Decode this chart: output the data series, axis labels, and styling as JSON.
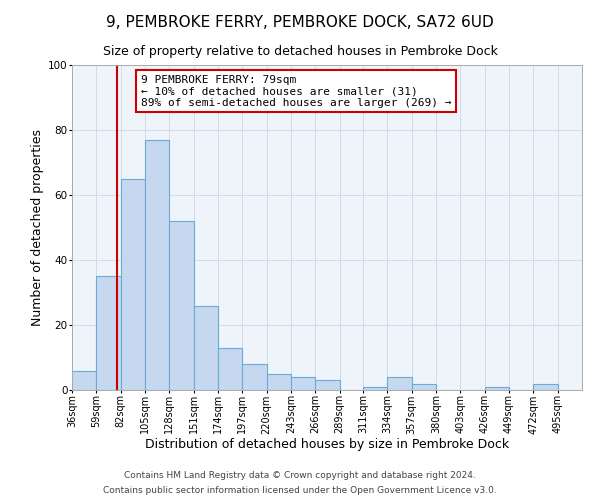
{
  "title": "9, PEMBROKE FERRY, PEMBROKE DOCK, SA72 6UD",
  "subtitle": "Size of property relative to detached houses in Pembroke Dock",
  "xlabel": "Distribution of detached houses by size in Pembroke Dock",
  "ylabel": "Number of detached properties",
  "bar_left_edges": [
    36,
    59,
    82,
    105,
    128,
    151,
    174,
    197,
    220,
    243,
    266,
    289,
    311,
    334,
    357,
    380,
    403,
    426,
    449,
    472
  ],
  "bar_heights": [
    6,
    35,
    65,
    77,
    52,
    26,
    13,
    8,
    5,
    4,
    3,
    0,
    1,
    4,
    2,
    0,
    0,
    1,
    0,
    2
  ],
  "bin_width": 23,
  "bar_color": "#c5d8f0",
  "bar_edge_color": "#6aaad4",
  "bar_linewidth": 0.8,
  "vline_x": 79,
  "vline_color": "#cc0000",
  "vline_linewidth": 1.5,
  "ylim": [
    0,
    100
  ],
  "xlim": [
    36,
    518
  ],
  "tick_labels": [
    "36sqm",
    "59sqm",
    "82sqm",
    "105sqm",
    "128sqm",
    "151sqm",
    "174sqm",
    "197sqm",
    "220sqm",
    "243sqm",
    "266sqm",
    "289sqm",
    "311sqm",
    "334sqm",
    "357sqm",
    "380sqm",
    "403sqm",
    "426sqm",
    "449sqm",
    "472sqm",
    "495sqm"
  ],
  "tick_positions": [
    36,
    59,
    82,
    105,
    128,
    151,
    174,
    197,
    220,
    243,
    266,
    289,
    311,
    334,
    357,
    380,
    403,
    426,
    449,
    472,
    495
  ],
  "annotation_box_text": "9 PEMBROKE FERRY: 79sqm\n← 10% of detached houses are smaller (31)\n89% of semi-detached houses are larger (269) →",
  "footer_line1": "Contains HM Land Registry data © Crown copyright and database right 2024.",
  "footer_line2": "Contains public sector information licensed under the Open Government Licence v3.0.",
  "grid_color": "#d0dce8",
  "background_color": "#eef4fa",
  "title_fontsize": 11,
  "subtitle_fontsize": 9,
  "axis_label_fontsize": 9,
  "tick_fontsize": 7,
  "annotation_fontsize": 8,
  "footer_fontsize": 6.5
}
